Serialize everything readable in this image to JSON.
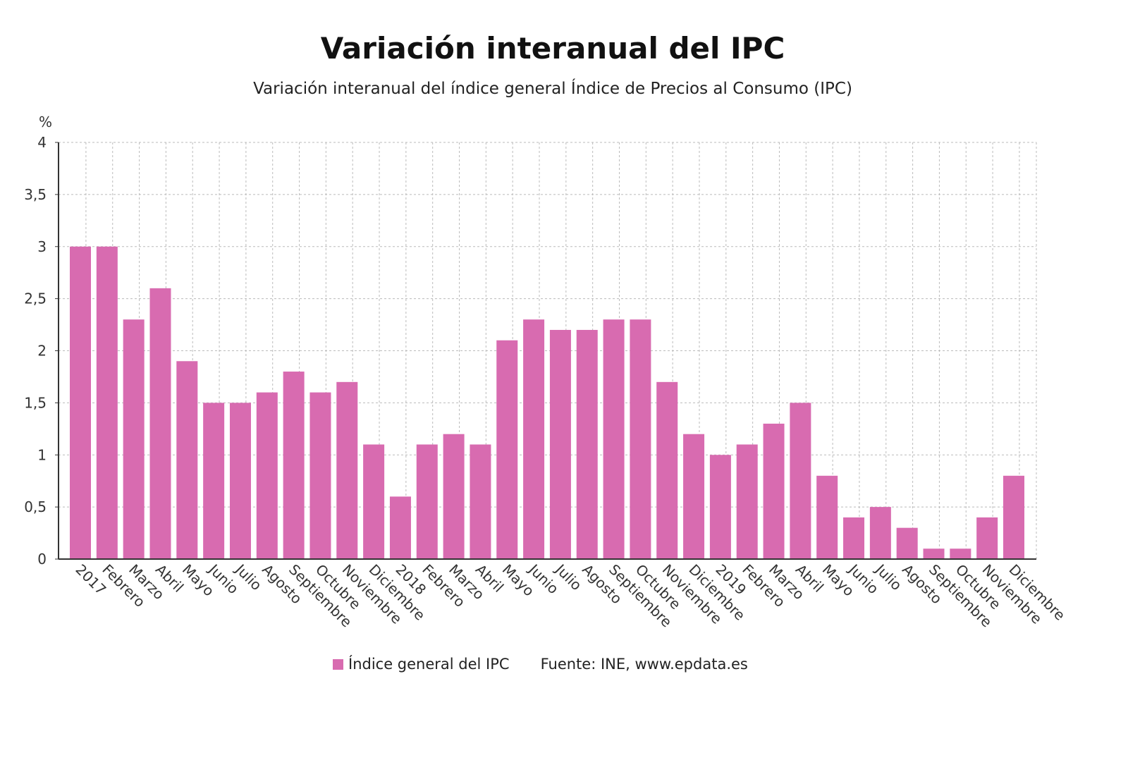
{
  "chart_data": {
    "type": "bar",
    "title": "Variación interanual del IPC",
    "subtitle": "Variación interanual del índice general Índice de Precios al Consumo (IPC)",
    "ylabel": "%",
    "xlabel": "",
    "ylim": [
      0,
      4
    ],
    "yticks": [
      "0",
      "0,5",
      "1",
      "1,5",
      "2",
      "2,5",
      "3",
      "3,5",
      "4"
    ],
    "grid": true,
    "legend_position": "bottom",
    "categories": [
      "2017",
      "Febrero",
      "Marzo",
      "Abril",
      "Mayo",
      "Junio",
      "Julio",
      "Agosto",
      "Septiembre",
      "Octubre",
      "Noviembre",
      "Diciembre",
      "2018",
      "Febrero",
      "Marzo",
      "Abril",
      "Mayo",
      "Junio",
      "Julio",
      "Agosto",
      "Septiembre",
      "Octubre",
      "Noviembre",
      "Diciembre",
      "2019",
      "Febrero",
      "Marzo",
      "Abril",
      "Mayo",
      "Junio",
      "Julio",
      "Agosto",
      "Septiembre",
      "Octubre",
      "Noviembre",
      "Diciembre"
    ],
    "series": [
      {
        "name": "Índice general del IPC",
        "color": "#d86bb0",
        "values": [
          3.0,
          3.0,
          2.3,
          2.6,
          1.9,
          1.5,
          1.5,
          1.6,
          1.8,
          1.6,
          1.7,
          1.1,
          0.6,
          1.1,
          1.2,
          1.1,
          2.1,
          2.3,
          2.2,
          2.2,
          2.3,
          2.3,
          1.7,
          1.2,
          1.0,
          1.1,
          1.3,
          1.5,
          0.8,
          0.4,
          0.5,
          0.3,
          0.1,
          0.1,
          0.4,
          0.8
        ]
      }
    ],
    "source": "Fuente: INE, www.epdata.es"
  }
}
